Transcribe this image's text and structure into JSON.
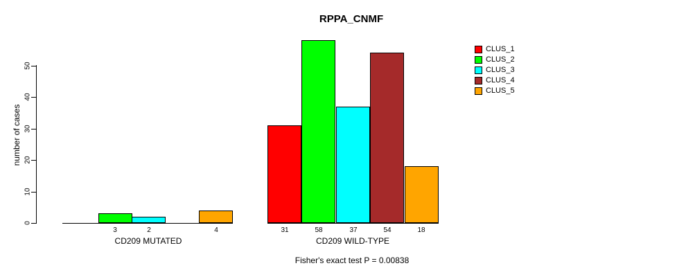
{
  "chart_data": {
    "type": "bar",
    "title": "RPPA_CNMF",
    "ylabel": "number of cases",
    "yticks": [
      0,
      10,
      20,
      30,
      40,
      50
    ],
    "ylim": [
      0,
      58
    ],
    "grid": false,
    "legend_position": "top-right",
    "legend": [
      {
        "label": "CLUS_1",
        "color": "#ff0000"
      },
      {
        "label": "CLUS_2",
        "color": "#00ff00"
      },
      {
        "label": "CLUS_3",
        "color": "#00ffff"
      },
      {
        "label": "CLUS_4",
        "color": "#a52a2a"
      },
      {
        "label": "CLUS_5",
        "color": "#ffa500"
      }
    ],
    "groups": [
      {
        "label": "CD209 MUTATED",
        "values": [
          0,
          3,
          2,
          0,
          4
        ]
      },
      {
        "label": "CD209 WILD-TYPE",
        "values": [
          31,
          58,
          37,
          54,
          18
        ]
      }
    ],
    "value_labels_note": "bars with value 0 are not drawn and not labeled",
    "annotation": "Fisher's exact test P = 0.00838"
  }
}
